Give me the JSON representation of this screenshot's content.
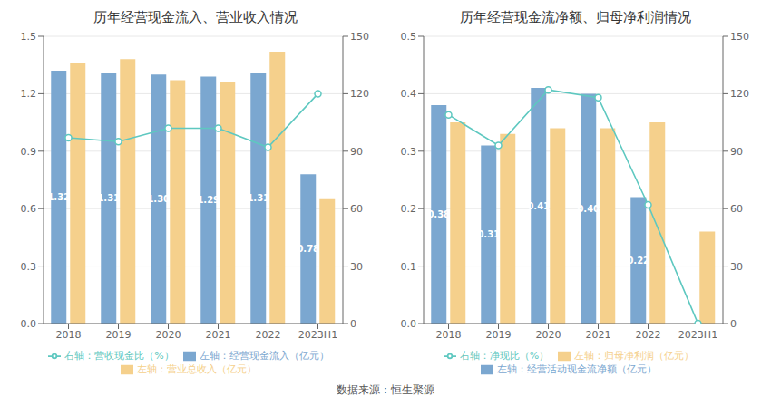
{
  "chart_data": [
    {
      "type": "bar",
      "title": "历年经营现金流入、营业收入情况",
      "categories": [
        "2018",
        "2019",
        "2020",
        "2021",
        "2022",
        "2023H1"
      ],
      "series": [
        {
          "name": "左轴：经营现金流入（亿元）",
          "type": "bar",
          "color": "#7ba7d0",
          "values": [
            1.32,
            1.31,
            1.3,
            1.29,
            1.31,
            0.78
          ],
          "data_labels": true,
          "value_labels": [
            "1.32",
            "1.31",
            "1.30",
            "1.29",
            "1.31",
            "0.78"
          ]
        },
        {
          "name": "左轴：营业总收入（亿元）",
          "type": "bar",
          "color": "#f5d08c",
          "values": [
            1.36,
            1.38,
            1.27,
            1.26,
            1.42,
            0.65
          ]
        },
        {
          "name": "右轴：营收现金比（%）",
          "type": "line",
          "axis": "y2",
          "color": "#5ec8c0",
          "marker": "circle",
          "values": [
            97,
            95,
            102,
            102,
            92,
            120
          ]
        }
      ],
      "ylim": [
        0,
        1.5
      ],
      "yticks": [
        {
          "value": 0,
          "label": "0.0"
        },
        0.3,
        0.6,
        0.9,
        1.2,
        1.5
      ],
      "y2lim": [
        0,
        150
      ],
      "y2ticks": [
        0,
        30,
        60,
        90,
        120,
        150
      ],
      "grid": true,
      "legend": "bottom"
    },
    {
      "type": "bar",
      "title": "历年经营现金流净额、归母净利润情况",
      "categories": [
        "2018",
        "2019",
        "2020",
        "2021",
        "2022",
        "2023H1"
      ],
      "series": [
        {
          "name": "左轴：经营活动现金流净额（亿元）",
          "type": "bar",
          "color": "#7ba7d0",
          "values": [
            0.38,
            0.31,
            0.41,
            0.4,
            0.22,
            0.0
          ],
          "data_labels": true,
          "value_labels": [
            "0.38",
            "0.31",
            "0.41",
            "0.40",
            "0.22",
            null
          ]
        },
        {
          "name": "左轴：归母净利润（亿元）",
          "type": "bar",
          "color": "#f5d08c",
          "values": [
            0.35,
            0.33,
            0.34,
            0.34,
            0.35,
            0.16
          ]
        },
        {
          "name": "右轴：净现比（%）",
          "type": "line",
          "axis": "y2",
          "color": "#5ec8c0",
          "marker": "circle",
          "values": [
            109,
            93,
            122,
            118,
            62,
            0
          ]
        }
      ],
      "ylim": [
        0,
        0.5
      ],
      "yticks": [
        {
          "value": 0,
          "label": "0.0"
        },
        0.1,
        0.2,
        0.3,
        0.4,
        0.5
      ],
      "y2lim": [
        0,
        150
      ],
      "y2ticks": [
        0,
        30,
        60,
        90,
        120,
        150
      ],
      "grid": true,
      "legend": "bottom"
    }
  ],
  "annotations": [
    "数据来源：恒生聚源"
  ]
}
